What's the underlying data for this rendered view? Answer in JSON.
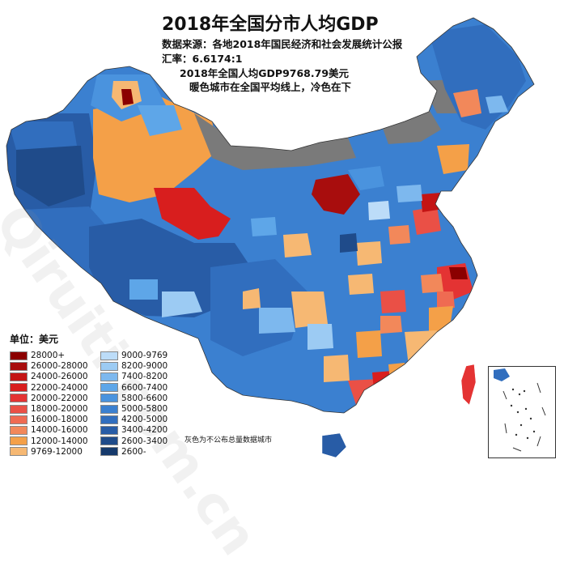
{
  "title": "2018年全国分市人均GDP",
  "source_line": "数据来源：各地2018年国民经济和社会发展统计公报",
  "exchange_line": "汇率：6.6174:1",
  "avg_line": "2018年全国人均GDP9768.79美元",
  "note_line": "暖色城市在全国平均线上，冷色在下",
  "gray_note": "灰色为不公布总量数据城市",
  "legend_title": "单位：美元",
  "legend_left": [
    {
      "label": "28000+",
      "color": "#8b0000"
    },
    {
      "label": "26000-28000",
      "color": "#a80d0d"
    },
    {
      "label": "24000-26000",
      "color": "#c41414"
    },
    {
      "label": "22000-24000",
      "color": "#d81e1e"
    },
    {
      "label": "20000-22000",
      "color": "#e43333"
    },
    {
      "label": "18000-20000",
      "color": "#ea5046"
    },
    {
      "label": "16000-18000",
      "color": "#ef6b52"
    },
    {
      "label": "14000-16000",
      "color": "#f2885a"
    },
    {
      "label": "12000-14000",
      "color": "#f4a048"
    },
    {
      "label": "9769-12000",
      "color": "#f6b873"
    }
  ],
  "legend_right": [
    {
      "label": "9000-9769",
      "color": "#bcdcf8"
    },
    {
      "label": "8200-9000",
      "color": "#9ccbf3"
    },
    {
      "label": "7400-8200",
      "color": "#7db8ee"
    },
    {
      "label": "6600-7400",
      "color": "#5ea6e8"
    },
    {
      "label": "5800-6600",
      "color": "#4a93de"
    },
    {
      "label": "5000-5800",
      "color": "#3b80d0"
    },
    {
      "label": "4200-5000",
      "color": "#316ebe"
    },
    {
      "label": "3400-4200",
      "color": "#285ca6"
    },
    {
      "label": "2600-3400",
      "color": "#1f4b8a"
    },
    {
      "label": "2600-",
      "color": "#163a6c"
    }
  ],
  "colors": {
    "no_data_gray": "#7a7a7a",
    "border": "#ffffff",
    "outline": "#333333"
  },
  "watermark": "Qiruiti.com.cn"
}
